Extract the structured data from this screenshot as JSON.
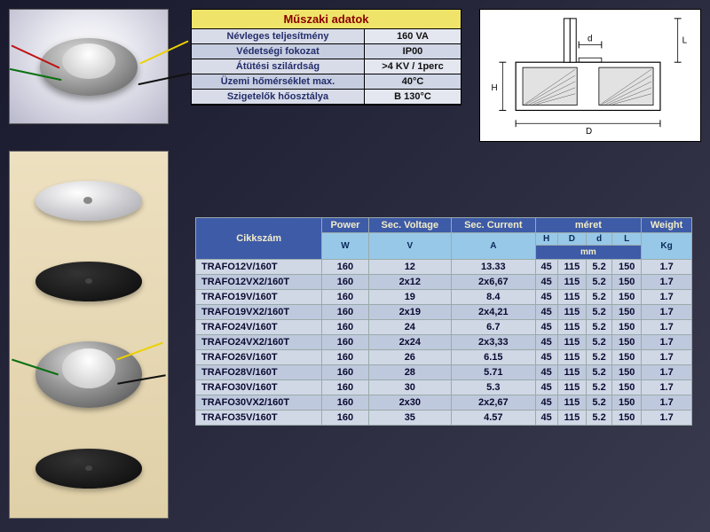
{
  "spec": {
    "title": "Műszaki adatok",
    "rows": [
      {
        "label": "Névleges teljesítmény",
        "value": "160 VA"
      },
      {
        "label": "Védetségi fokozat",
        "value": "IP00"
      },
      {
        "label": "Átütési szilárdság",
        "value": ">4 KV / 1perc"
      },
      {
        "label": "Üzemi hőmérséklet max.",
        "value": "40°C"
      },
      {
        "label": "Szigetelők hőosztálya",
        "value": "B 130°C"
      }
    ]
  },
  "drawing": {
    "labels": {
      "H": "H",
      "D": "D",
      "d": "d",
      "L": "L"
    }
  },
  "table": {
    "headers": {
      "cikkszam": "Cikkszám",
      "power": "Power",
      "voltage": "Sec. Voltage",
      "current": "Sec. Current",
      "meret": "méret",
      "weight": "Weight",
      "H": "H",
      "D": "D",
      "d": "d",
      "L": "L",
      "W": "W",
      "V": "V",
      "A": "A",
      "mm": "mm",
      "Kg": "Kg"
    },
    "rows": [
      {
        "cikk": "TRAFO12V/160T",
        "w": "160",
        "v": "12",
        "a": "13.33",
        "H": "45",
        "D": "115",
        "d": "5.2",
        "L": "150",
        "kg": "1.7"
      },
      {
        "cikk": "TRAFO12VX2/160T",
        "w": "160",
        "v": "2x12",
        "a": "2x6,67",
        "H": "45",
        "D": "115",
        "d": "5.2",
        "L": "150",
        "kg": "1.7"
      },
      {
        "cikk": "TRAFO19V/160T",
        "w": "160",
        "v": "19",
        "a": "8.4",
        "H": "45",
        "D": "115",
        "d": "5.2",
        "L": "150",
        "kg": "1.7"
      },
      {
        "cikk": "TRAFO19VX2/160T",
        "w": "160",
        "v": "2x19",
        "a": "2x4,21",
        "H": "45",
        "D": "115",
        "d": "5.2",
        "L": "150",
        "kg": "1.7"
      },
      {
        "cikk": "TRAFO24V/160T",
        "w": "160",
        "v": "24",
        "a": "6.7",
        "H": "45",
        "D": "115",
        "d": "5.2",
        "L": "150",
        "kg": "1.7"
      },
      {
        "cikk": "TRAFO24VX2/160T",
        "w": "160",
        "v": "2x24",
        "a": "2x3,33",
        "H": "45",
        "D": "115",
        "d": "5.2",
        "L": "150",
        "kg": "1.7"
      },
      {
        "cikk": "TRAFO26V/160T",
        "w": "160",
        "v": "26",
        "a": "6.15",
        "H": "45",
        "D": "115",
        "d": "5.2",
        "L": "150",
        "kg": "1.7"
      },
      {
        "cikk": "TRAFO28V/160T",
        "w": "160",
        "v": "28",
        "a": "5.71",
        "H": "45",
        "D": "115",
        "d": "5.2",
        "L": "150",
        "kg": "1.7"
      },
      {
        "cikk": "TRAFO30V/160T",
        "w": "160",
        "v": "30",
        "a": "5.3",
        "H": "45",
        "D": "115",
        "d": "5.2",
        "L": "150",
        "kg": "1.7"
      },
      {
        "cikk": "TRAFO30VX2/160T",
        "w": "160",
        "v": "2x30",
        "a": "2x2,67",
        "H": "45",
        "D": "115",
        "d": "5.2",
        "L": "150",
        "kg": "1.7"
      },
      {
        "cikk": "TRAFO35V/160T",
        "w": "160",
        "v": "35",
        "a": "4.57",
        "H": "45",
        "D": "115",
        "d": "5.2",
        "L": "150",
        "kg": "1.7"
      }
    ]
  },
  "colors": {
    "hdr_bg": "#3e5ba8",
    "hdr_fg": "#f2edc8",
    "dim_bg": "#98c8e8",
    "row_odd": "#d0d8e6",
    "row_even": "#bfc9dd",
    "spec_title_bg": "#efe36a",
    "spec_title_fg": "#8a0000"
  }
}
